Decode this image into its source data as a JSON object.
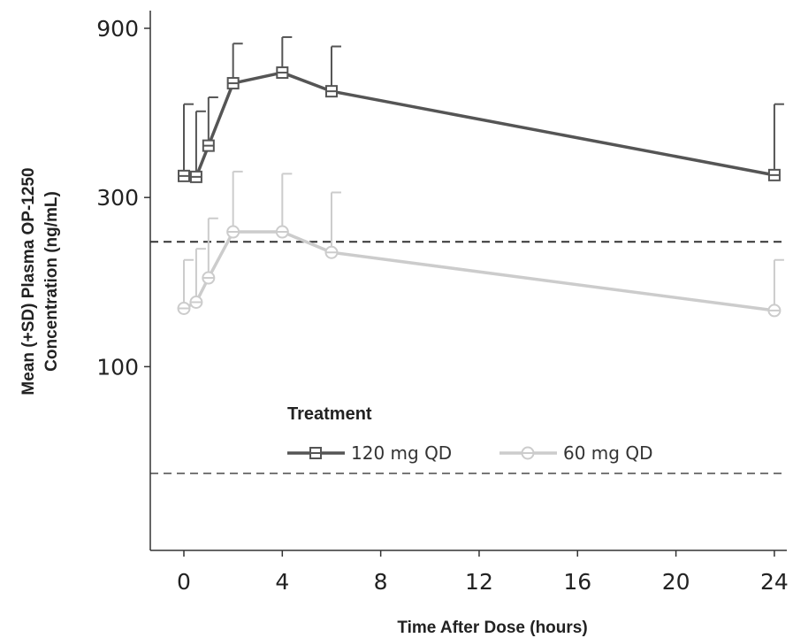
{
  "chart_data": {
    "type": "line",
    "title": "",
    "xlabel": "Time After Dose (hours)",
    "ylabel": "Mean (+SD) Plasma OP-1250 Concentration (ng/mL)",
    "ylabel_lines": [
      "Mean (+SD) Plasma OP-1250",
      "Concentration (ng/mL)"
    ],
    "y_scale": "log",
    "xlim": [
      -1.5,
      25
    ],
    "ylim": [
      45,
      1000
    ],
    "x_ticks": [
      0,
      4,
      8,
      12,
      16,
      20,
      24
    ],
    "x_tick_labels": [
      "0",
      "4",
      "8",
      "12",
      "16",
      "20",
      "24"
    ],
    "y_ticks": [
      100,
      300,
      900
    ],
    "y_tick_labels": [
      "100",
      "300",
      "900"
    ],
    "grid": false,
    "legend": {
      "title": "Treatment",
      "placement": "lower-center"
    },
    "reference_lines": [
      {
        "y": 225,
        "style": "dashed",
        "color": "#333333"
      },
      {
        "y": 50,
        "style": "dashed",
        "color": "#777777"
      }
    ],
    "series": [
      {
        "name": "120 mg QD",
        "marker": "square",
        "color": "#555555",
        "x": [
          0,
          0.5,
          1,
          2,
          4,
          6,
          24
        ],
        "y": [
          345,
          343,
          420,
          630,
          675,
          598,
          347
        ],
        "sd_upper": [
          550,
          525,
          575,
          815,
          850,
          800,
          550
        ]
      },
      {
        "name": "60 mg QD",
        "marker": "circle",
        "color": "#cccccc",
        "x": [
          0,
          0.5,
          1,
          2,
          4,
          6,
          24
        ],
        "y": [
          146,
          152,
          178,
          240,
          240,
          210,
          144
        ],
        "sd_upper": [
          200,
          215,
          262,
          355,
          350,
          310,
          200
        ]
      }
    ]
  }
}
